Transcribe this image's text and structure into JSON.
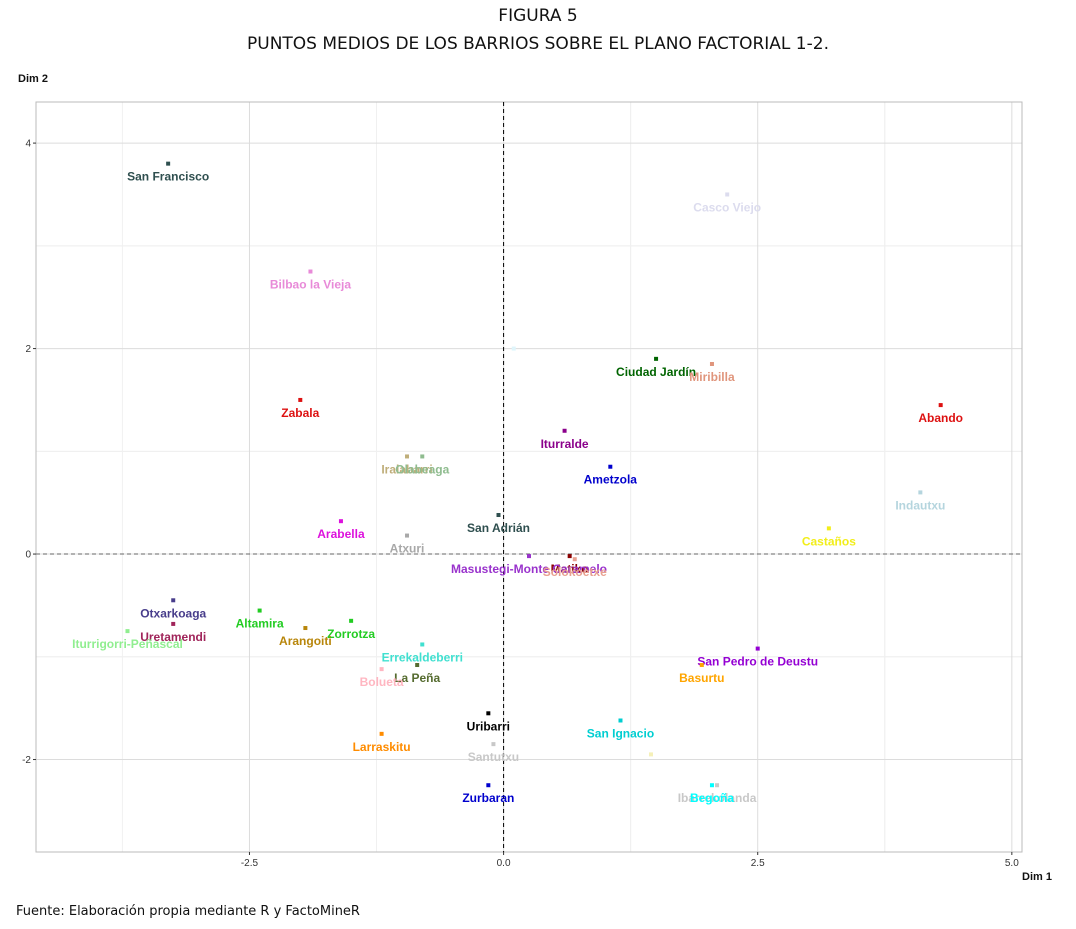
{
  "figure": {
    "label": "FIGURA 5",
    "title": "PUNTOS MEDIOS DE LOS BARRIOS SOBRE EL PLANO FACTORIAL 1-2.",
    "source": "Fuente: Elaboración propia mediante R y FactoMineR"
  },
  "chart_data": {
    "type": "scatter",
    "xlabel": "Dim 1",
    "ylabel": "Dim 2",
    "xlim": [
      -4.6,
      5.1
    ],
    "ylim": [
      -2.9,
      4.4
    ],
    "xticks": [
      -2.5,
      0.0,
      2.5,
      5.0
    ],
    "xtick_labels": [
      "-2.5",
      "0.0",
      "2.5",
      "5.0"
    ],
    "yticks": [
      -2,
      0,
      2,
      4
    ],
    "ytick_labels": [
      "-2",
      "0",
      "2",
      "4"
    ],
    "reference_lines": {
      "x": 0,
      "y": 0,
      "style": "dashed"
    },
    "grid": true,
    "points": [
      {
        "label": "San Francisco",
        "x": -3.3,
        "y": 3.8,
        "color": "#2f4f4f"
      },
      {
        "label": "Casco Viejo",
        "x": 2.2,
        "y": 3.5,
        "color": "#dcdcee"
      },
      {
        "label": "Bilbao la Vieja",
        "x": -1.9,
        "y": 2.75,
        "color": "#e88ad8"
      },
      {
        "label": "",
        "x": 0.1,
        "y": 2.0,
        "color": "#dff5fb"
      },
      {
        "label": "Ciudad Jardín",
        "x": 1.5,
        "y": 1.9,
        "color": "#006400"
      },
      {
        "label": "Miribilla",
        "x": 2.05,
        "y": 1.85,
        "color": "#e0957c"
      },
      {
        "label": "Abando",
        "x": 4.3,
        "y": 1.45,
        "color": "#dd1111"
      },
      {
        "label": "Zabala",
        "x": -2.0,
        "y": 1.5,
        "color": "#dd1111"
      },
      {
        "label": "Iturralde",
        "x": 0.6,
        "y": 1.2,
        "color": "#8b008b"
      },
      {
        "label": "Iralabarri",
        "x": -0.95,
        "y": 0.95,
        "color": "#bfae7a"
      },
      {
        "label": "Olabeaga",
        "x": -0.8,
        "y": 0.95,
        "color": "#8fbc8f"
      },
      {
        "label": "Ametzola",
        "x": 1.05,
        "y": 0.85,
        "color": "#0000cd"
      },
      {
        "label": "Indautxu",
        "x": 4.1,
        "y": 0.6,
        "color": "#b5d5de"
      },
      {
        "label": "Castaños",
        "x": 3.2,
        "y": 0.25,
        "color": "#f2ee1a"
      },
      {
        "label": "Arabella",
        "x": -1.6,
        "y": 0.32,
        "color": "#dd11dd"
      },
      {
        "label": "San Adrián",
        "x": -0.05,
        "y": 0.38,
        "color": "#2f4f4f"
      },
      {
        "label": "Atxuri",
        "x": -0.95,
        "y": 0.18,
        "color": "#a8a8a8"
      },
      {
        "label": "Matiko",
        "x": 0.65,
        "y": -0.02,
        "color": "#8b0000"
      },
      {
        "label": "Masustegi-Monte Caramelo",
        "x": 0.25,
        "y": -0.02,
        "color": "#9932cc"
      },
      {
        "label": "Solokoetxe",
        "x": 0.7,
        "y": -0.05,
        "color": "#e8a090"
      },
      {
        "label": "Otxarkoaga",
        "x": -3.25,
        "y": -0.45,
        "color": "#483d8b"
      },
      {
        "label": "Uretamendi",
        "x": -3.25,
        "y": -0.68,
        "color": "#a0245a"
      },
      {
        "label": "Altamira",
        "x": -2.4,
        "y": -0.55,
        "color": "#22cc22"
      },
      {
        "label": "Zorrotza",
        "x": -1.5,
        "y": -0.65,
        "color": "#22cc22"
      },
      {
        "label": "Arangoiti",
        "x": -1.95,
        "y": -0.72,
        "color": "#b8860b"
      },
      {
        "label": "Iturrigorri-Peñascal",
        "x": -3.7,
        "y": -0.75,
        "color": "#90ee90"
      },
      {
        "label": "Errekaldeberri",
        "x": -0.8,
        "y": -0.88,
        "color": "#40e0d0"
      },
      {
        "label": "La Peña",
        "x": -0.85,
        "y": -1.08,
        "color": "#556b2f"
      },
      {
        "label": "Bolueta",
        "x": -1.2,
        "y": -1.12,
        "color": "#ffb6c1"
      },
      {
        "label": "San Pedro de Deustu",
        "x": 2.5,
        "y": -0.92,
        "color": "#9400d3"
      },
      {
        "label": "Basurtu",
        "x": 1.95,
        "y": -1.08,
        "color": "#ffa500"
      },
      {
        "label": "San Ignacio",
        "x": 1.15,
        "y": -1.62,
        "color": "#00ced1"
      },
      {
        "label": "Larraskitu",
        "x": -1.2,
        "y": -1.75,
        "color": "#ff8c00"
      },
      {
        "label": "Uribarri",
        "x": -0.15,
        "y": -1.55,
        "color": "#000000"
      },
      {
        "label": "Santutxu",
        "x": -0.1,
        "y": -1.85,
        "color": "#c8c8c8"
      },
      {
        "label": "",
        "x": 1.45,
        "y": -1.95,
        "color": "#f5f0b8"
      },
      {
        "label": "Zurbaran",
        "x": -0.15,
        "y": -2.25,
        "color": "#0000cd"
      },
      {
        "label": "Ibarrekolanda",
        "x": 2.1,
        "y": -2.25,
        "color": "#c8c8c8"
      },
      {
        "label": "Begoña",
        "x": 2.05,
        "y": -2.25,
        "color": "#00ffff"
      }
    ]
  }
}
